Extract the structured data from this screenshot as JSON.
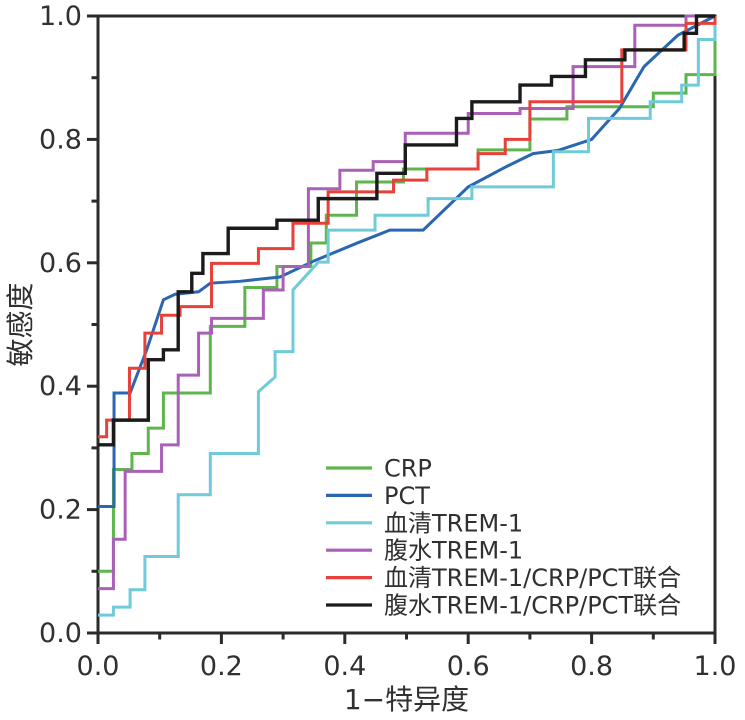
{
  "figure": {
    "kind": "roc-curve-figure"
  },
  "axes": {
    "x_label": "1−特异度",
    "y_label": "敏感度",
    "x_tick_labels": [
      "0.0",
      "0.2",
      "0.4",
      "0.6",
      "0.8",
      "1.0"
    ],
    "y_tick_labels": [
      "0.0",
      "0.2",
      "0.4",
      "0.6",
      "0.8",
      "1.0"
    ],
    "x_range": [
      0,
      1
    ],
    "y_range": [
      0,
      1
    ],
    "minor_tick_step": 0.1,
    "frame": "box",
    "grid": false
  },
  "legend": {
    "position": "inside-lower-right-of-center"
  },
  "chart_data": {
    "type": "line",
    "subtype": "roc",
    "title": "",
    "xlabel": "1−特异度",
    "ylabel": "敏感度",
    "xlim": [
      0,
      1
    ],
    "ylim": [
      0,
      1
    ],
    "series": [
      {
        "name": "CRP",
        "color": "#5fb54d",
        "points": [
          [
            0,
            0.1
          ],
          [
            0.025,
            0.1
          ],
          [
            0.025,
            0.265
          ],
          [
            0.055,
            0.265
          ],
          [
            0.055,
            0.291
          ],
          [
            0.0815,
            0.291
          ],
          [
            0.0815,
            0.332
          ],
          [
            0.106,
            0.332
          ],
          [
            0.106,
            0.389
          ],
          [
            0.182,
            0.389
          ],
          [
            0.182,
            0.497
          ],
          [
            0.238,
            0.497
          ],
          [
            0.238,
            0.56
          ],
          [
            0.29,
            0.56
          ],
          [
            0.29,
            0.594
          ],
          [
            0.345,
            0.594
          ],
          [
            0.345,
            0.632
          ],
          [
            0.37,
            0.632
          ],
          [
            0.37,
            0.677
          ],
          [
            0.419,
            0.677
          ],
          [
            0.419,
            0.731
          ],
          [
            0.495,
            0.731
          ],
          [
            0.495,
            0.752
          ],
          [
            0.616,
            0.752
          ],
          [
            0.616,
            0.783
          ],
          [
            0.7,
            0.783
          ],
          [
            0.7,
            0.833
          ],
          [
            0.76,
            0.833
          ],
          [
            0.76,
            0.853
          ],
          [
            0.9,
            0.853
          ],
          [
            0.9,
            0.875
          ],
          [
            0.953,
            0.875
          ],
          [
            0.953,
            0.905
          ],
          [
            1,
            0.905
          ],
          [
            1,
            1
          ]
        ]
      },
      {
        "name": "PCT",
        "color": "#2a67b0",
        "points": [
          [
            0,
            0.205
          ],
          [
            0.026,
            0.205
          ],
          [
            0.026,
            0.389
          ],
          [
            0.052,
            0.389
          ],
          [
            0.079,
            0.459
          ],
          [
            0.106,
            0.54
          ],
          [
            0.125,
            0.549
          ],
          [
            0.163,
            0.553
          ],
          [
            0.182,
            0.567
          ],
          [
            0.23,
            0.57
          ],
          [
            0.295,
            0.577
          ],
          [
            0.35,
            0.603
          ],
          [
            0.42,
            0.632
          ],
          [
            0.473,
            0.653
          ],
          [
            0.527,
            0.653
          ],
          [
            0.6,
            0.723
          ],
          [
            0.66,
            0.755
          ],
          [
            0.705,
            0.777
          ],
          [
            0.745,
            0.782
          ],
          [
            0.8,
            0.8
          ],
          [
            0.845,
            0.85
          ],
          [
            0.885,
            0.918
          ],
          [
            0.94,
            0.969
          ],
          [
            1,
            1
          ]
        ]
      },
      {
        "name": "血清TREM-1",
        "color": "#6fcbd9",
        "points": [
          [
            0,
            0.029
          ],
          [
            0.025,
            0.029
          ],
          [
            0.025,
            0.042
          ],
          [
            0.052,
            0.042
          ],
          [
            0.052,
            0.07
          ],
          [
            0.076,
            0.07
          ],
          [
            0.076,
            0.124
          ],
          [
            0.13,
            0.124
          ],
          [
            0.13,
            0.224
          ],
          [
            0.182,
            0.224
          ],
          [
            0.182,
            0.291
          ],
          [
            0.26,
            0.291
          ],
          [
            0.26,
            0.391
          ],
          [
            0.287,
            0.415
          ],
          [
            0.287,
            0.456
          ],
          [
            0.316,
            0.456
          ],
          [
            0.316,
            0.556
          ],
          [
            0.357,
            0.601
          ],
          [
            0.373,
            0.601
          ],
          [
            0.373,
            0.653
          ],
          [
            0.449,
            0.653
          ],
          [
            0.449,
            0.677
          ],
          [
            0.535,
            0.677
          ],
          [
            0.535,
            0.704
          ],
          [
            0.606,
            0.704
          ],
          [
            0.606,
            0.723
          ],
          [
            0.738,
            0.723
          ],
          [
            0.738,
            0.78
          ],
          [
            0.795,
            0.78
          ],
          [
            0.795,
            0.834
          ],
          [
            0.895,
            0.834
          ],
          [
            0.895,
            0.861
          ],
          [
            0.946,
            0.861
          ],
          [
            0.946,
            0.888
          ],
          [
            0.973,
            0.888
          ],
          [
            0.973,
            0.962
          ],
          [
            1,
            0.962
          ],
          [
            1,
            1
          ]
        ]
      },
      {
        "name": "腹水TREM-1",
        "color": "#a960b6",
        "points": [
          [
            0,
            0.072
          ],
          [
            0.025,
            0.072
          ],
          [
            0.025,
            0.152
          ],
          [
            0.044,
            0.152
          ],
          [
            0.044,
            0.262
          ],
          [
            0.103,
            0.262
          ],
          [
            0.103,
            0.305
          ],
          [
            0.13,
            0.305
          ],
          [
            0.13,
            0.418
          ],
          [
            0.163,
            0.418
          ],
          [
            0.163,
            0.486
          ],
          [
            0.184,
            0.486
          ],
          [
            0.184,
            0.51
          ],
          [
            0.268,
            0.51
          ],
          [
            0.268,
            0.556
          ],
          [
            0.3,
            0.556
          ],
          [
            0.3,
            0.594
          ],
          [
            0.341,
            0.594
          ],
          [
            0.341,
            0.72
          ],
          [
            0.392,
            0.72
          ],
          [
            0.392,
            0.75
          ],
          [
            0.446,
            0.75
          ],
          [
            0.446,
            0.764
          ],
          [
            0.498,
            0.764
          ],
          [
            0.498,
            0.81
          ],
          [
            0.6,
            0.81
          ],
          [
            0.6,
            0.842
          ],
          [
            0.684,
            0.842
          ],
          [
            0.684,
            0.85
          ],
          [
            0.77,
            0.85
          ],
          [
            0.77,
            0.918
          ],
          [
            0.87,
            0.918
          ],
          [
            0.87,
            0.985
          ],
          [
            0.953,
            0.985
          ],
          [
            0.953,
            1
          ],
          [
            1,
            1
          ]
        ]
      },
      {
        "name": "血清TREM-1/CRP/PCT联合",
        "color": "#e8403a",
        "points": [
          [
            0,
            0.318
          ],
          [
            0.014,
            0.318
          ],
          [
            0.014,
            0.345
          ],
          [
            0.051,
            0.345
          ],
          [
            0.051,
            0.429
          ],
          [
            0.076,
            0.429
          ],
          [
            0.076,
            0.486
          ],
          [
            0.103,
            0.486
          ],
          [
            0.103,
            0.515
          ],
          [
            0.133,
            0.515
          ],
          [
            0.133,
            0.529
          ],
          [
            0.184,
            0.529
          ],
          [
            0.184,
            0.599
          ],
          [
            0.26,
            0.599
          ],
          [
            0.26,
            0.623
          ],
          [
            0.316,
            0.623
          ],
          [
            0.316,
            0.664
          ],
          [
            0.373,
            0.664
          ],
          [
            0.373,
            0.715
          ],
          [
            0.479,
            0.715
          ],
          [
            0.479,
            0.734
          ],
          [
            0.533,
            0.734
          ],
          [
            0.533,
            0.752
          ],
          [
            0.616,
            0.752
          ],
          [
            0.616,
            0.777
          ],
          [
            0.66,
            0.777
          ],
          [
            0.66,
            0.8
          ],
          [
            0.7,
            0.8
          ],
          [
            0.7,
            0.861
          ],
          [
            0.849,
            0.861
          ],
          [
            0.849,
            0.945
          ],
          [
            0.953,
            0.945
          ],
          [
            0.953,
            0.988
          ],
          [
            1,
            0.988
          ],
          [
            1,
            1
          ]
        ]
      },
      {
        "name": "腹水TREM-1/CRP/PCT联合",
        "color": "#1b1b1b",
        "points": [
          [
            0,
            0.305
          ],
          [
            0.025,
            0.305
          ],
          [
            0.025,
            0.345
          ],
          [
            0.0815,
            0.345
          ],
          [
            0.0815,
            0.443
          ],
          [
            0.106,
            0.443
          ],
          [
            0.106,
            0.459
          ],
          [
            0.13,
            0.459
          ],
          [
            0.13,
            0.553
          ],
          [
            0.152,
            0.553
          ],
          [
            0.152,
            0.583
          ],
          [
            0.17,
            0.583
          ],
          [
            0.17,
            0.615
          ],
          [
            0.211,
            0.615
          ],
          [
            0.211,
            0.656
          ],
          [
            0.29,
            0.656
          ],
          [
            0.29,
            0.669
          ],
          [
            0.357,
            0.669
          ],
          [
            0.357,
            0.704
          ],
          [
            0.452,
            0.704
          ],
          [
            0.452,
            0.745
          ],
          [
            0.498,
            0.745
          ],
          [
            0.498,
            0.791
          ],
          [
            0.581,
            0.791
          ],
          [
            0.581,
            0.834
          ],
          [
            0.606,
            0.834
          ],
          [
            0.606,
            0.861
          ],
          [
            0.684,
            0.861
          ],
          [
            0.684,
            0.888
          ],
          [
            0.735,
            0.888
          ],
          [
            0.735,
            0.902
          ],
          [
            0.79,
            0.902
          ],
          [
            0.79,
            0.929
          ],
          [
            0.854,
            0.929
          ],
          [
            0.854,
            0.945
          ],
          [
            0.95,
            0.945
          ],
          [
            0.95,
            0.972
          ],
          [
            0.97,
            0.972
          ],
          [
            0.97,
            1
          ],
          [
            1,
            1
          ]
        ]
      }
    ]
  }
}
